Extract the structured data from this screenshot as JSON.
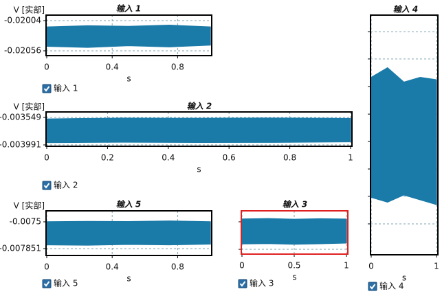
{
  "chart_data": [
    {
      "type": "area",
      "title": "输入 1",
      "ylabel": "V [实部]",
      "xlabel": "s",
      "checkbox": "输入 1",
      "color": "#1a7aa8",
      "x": [
        0,
        0.25,
        0.5,
        0.75,
        1
      ],
      "high": [
        -0.02015,
        -0.02013,
        -0.02014,
        -0.02012,
        -0.02015
      ],
      "low": [
        -0.02048,
        -0.0205,
        -0.02047,
        -0.02049,
        -0.02046
      ],
      "xlim": [
        0,
        1
      ],
      "xticks": [
        0,
        0.4,
        0.8
      ],
      "ylim": [
        -0.020643,
        -0.019945
      ],
      "yticks": [
        -0.02004,
        -0.02056
      ]
    },
    {
      "type": "area",
      "title": "输入 2",
      "ylabel": "V [实部]",
      "xlabel": "s",
      "checkbox": "输入 2",
      "color": "#1a7aa8",
      "x": [
        0,
        0.25,
        0.5,
        0.75,
        1
      ],
      "high": [
        -0.003575,
        -0.003562,
        -0.003565,
        -0.00356,
        -0.003568
      ],
      "low": [
        -0.003952,
        -0.003945,
        -0.00395,
        -0.003948,
        -0.00394
      ],
      "xlim": [
        0,
        1
      ],
      "xticks": [
        0,
        0.2,
        0.4,
        0.6,
        0.8,
        1
      ],
      "ylim": [
        -0.004013,
        -0.003461
      ],
      "yticks": [
        -0.003549,
        -0.003991
      ]
    },
    {
      "type": "area",
      "title": "输入 5",
      "ylabel": "V [实部]",
      "xlabel": "s",
      "checkbox": "输入 5",
      "color": "#1a7aa8",
      "x": [
        0,
        0.25,
        0.5,
        0.75,
        1
      ],
      "high": [
        -0.0075,
        -0.007495,
        -0.007498,
        -0.00749,
        -0.0075
      ],
      "low": [
        -0.0078,
        -0.007805,
        -0.007795,
        -0.0078,
        -0.00779
      ],
      "xlim": [
        0,
        1
      ],
      "xticks": [
        0,
        0.4,
        0.8
      ],
      "ylim": [
        -0.007941,
        -0.007356
      ],
      "yticks": [
        -0.0075,
        -0.007851
      ]
    },
    {
      "type": "area",
      "title": "输入 3",
      "xlabel": "s",
      "checkbox": "输入 3",
      "color": "#1a7aa8",
      "selected": true,
      "x": [
        0,
        0.25,
        0.5,
        0.75,
        1
      ],
      "high": [
        -0.007465,
        -0.00746,
        -0.007468,
        -0.007462,
        -0.007466
      ],
      "low": [
        -0.007781,
        -0.007776,
        -0.007785,
        -0.007778,
        -0.00777
      ],
      "xlim": [
        0,
        1
      ],
      "xticks": [
        0,
        0.5,
        1
      ],
      "ylim": [
        -0.007912,
        -0.00736
      ],
      "ygrid": [
        -0.0075,
        -0.007851
      ]
    },
    {
      "type": "area",
      "title": "输入 4",
      "xlabel": "s",
      "checkbox": "输入 4",
      "color": "#1a7aa8",
      "x": [
        0,
        0.25,
        0.5,
        0.75,
        1
      ],
      "high": [
        0.74,
        0.78,
        0.72,
        0.74,
        0.73
      ],
      "low": [
        0.24,
        0.22,
        0.25,
        0.23,
        0.21
      ],
      "xlim": [
        0,
        1
      ],
      "xticks": [
        0,
        1
      ],
      "ylim": [
        0,
        1
      ],
      "ygrid": [
        0.931,
        0.817,
        0.702,
        0.587,
        0.473,
        0.358,
        0.244,
        0.129
      ]
    }
  ]
}
